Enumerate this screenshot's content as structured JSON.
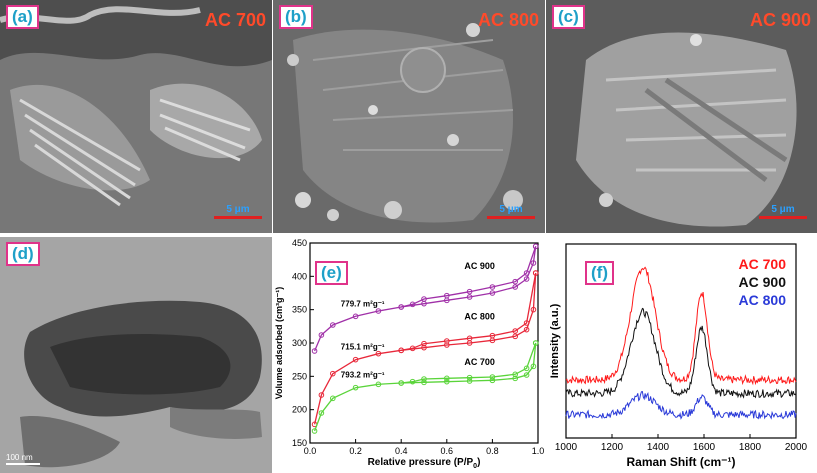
{
  "panels": {
    "a": {
      "label": "(a)",
      "sample": "AC 700",
      "scale": "5 μm"
    },
    "b": {
      "label": "(b)",
      "sample": "AC 800",
      "scale": "5 μm"
    },
    "c": {
      "label": "(c)",
      "sample": "AC 900",
      "scale": "5 μm"
    },
    "d": {
      "label": "(d)",
      "scale": "100 nm"
    },
    "e": {
      "label": "(e)"
    },
    "f": {
      "label": "(f)"
    }
  },
  "chart_data": [
    {
      "type": "line",
      "panel": "(e)",
      "xlabel": "Relative pressure (P/P",
      "xlabel_sub": "0",
      "xlabel_close": ")",
      "ylabel": "Volume adsorbed (cm³g⁻¹)",
      "xlim": [
        0.0,
        1.0
      ],
      "ylim": [
        150,
        450
      ],
      "xticks": [
        "0.0",
        "0.2",
        "0.4",
        "0.6",
        "0.8",
        "1.0"
      ],
      "yticks": [
        "150",
        "200",
        "250",
        "300",
        "350",
        "400",
        "450"
      ],
      "series": [
        {
          "name": "AC 900",
          "area": "779.7 m²g⁻¹",
          "color": "#a030a8",
          "adsorption": [
            [
              0.02,
              288
            ],
            [
              0.05,
              312
            ],
            [
              0.1,
              327
            ],
            [
              0.2,
              340
            ],
            [
              0.3,
              348
            ],
            [
              0.4,
              354
            ],
            [
              0.5,
              359
            ],
            [
              0.6,
              364
            ],
            [
              0.7,
              369
            ],
            [
              0.8,
              375
            ],
            [
              0.9,
              384
            ],
            [
              0.95,
              396
            ],
            [
              0.98,
              420
            ],
            [
              0.99,
              445
            ]
          ],
          "desorption": [
            [
              0.99,
              445
            ],
            [
              0.95,
              405
            ],
            [
              0.9,
              392
            ],
            [
              0.8,
              384
            ],
            [
              0.7,
              377
            ],
            [
              0.6,
              371
            ],
            [
              0.5,
              366
            ],
            [
              0.45,
              358
            ],
            [
              0.4,
              354
            ]
          ]
        },
        {
          "name": "AC 800",
          "area": "715.1 m²g⁻¹",
          "color": "#e8283a",
          "adsorption": [
            [
              0.02,
              178
            ],
            [
              0.05,
              222
            ],
            [
              0.1,
              254
            ],
            [
              0.2,
              275
            ],
            [
              0.3,
              284
            ],
            [
              0.4,
              289
            ],
            [
              0.5,
              293
            ],
            [
              0.6,
              297
            ],
            [
              0.7,
              300
            ],
            [
              0.8,
              304
            ],
            [
              0.9,
              310
            ],
            [
              0.95,
              320
            ],
            [
              0.98,
              350
            ],
            [
              0.99,
              405
            ]
          ],
          "desorption": [
            [
              0.99,
              405
            ],
            [
              0.95,
              330
            ],
            [
              0.9,
              318
            ],
            [
              0.8,
              311
            ],
            [
              0.7,
              307
            ],
            [
              0.6,
              303
            ],
            [
              0.5,
              299
            ],
            [
              0.45,
              292
            ],
            [
              0.4,
              289
            ]
          ]
        },
        {
          "name": "AC 700",
          "area": "793.2 m²g⁻¹",
          "color": "#5ad43a",
          "adsorption": [
            [
              0.02,
              168
            ],
            [
              0.05,
              195
            ],
            [
              0.1,
              217
            ],
            [
              0.2,
              233
            ],
            [
              0.3,
              238
            ],
            [
              0.4,
              240
            ],
            [
              0.5,
              241
            ],
            [
              0.6,
              242
            ],
            [
              0.7,
              243
            ],
            [
              0.8,
              244
            ],
            [
              0.9,
              247
            ],
            [
              0.95,
              252
            ],
            [
              0.98,
              265
            ],
            [
              0.99,
              300
            ]
          ],
          "desorption": [
            [
              0.99,
              300
            ],
            [
              0.95,
              262
            ],
            [
              0.9,
              253
            ],
            [
              0.8,
              249
            ],
            [
              0.7,
              248
            ],
            [
              0.6,
              247
            ],
            [
              0.5,
              246
            ],
            [
              0.45,
              242
            ],
            [
              0.4,
              240
            ]
          ]
        }
      ]
    },
    {
      "type": "line",
      "panel": "(f)",
      "xlabel": "Raman Shift (cm⁻¹)",
      "ylabel": "Intensity (a.u.)",
      "xlim": [
        1000,
        2000
      ],
      "xticks": [
        "1000",
        "1200",
        "1400",
        "1600",
        "1800",
        "2000"
      ],
      "legend_position": "top-right",
      "series": [
        {
          "name": "AC 700",
          "color": "#ff1a1a",
          "baseline": 0.3,
          "d_peak": 0.58,
          "g_peak": 0.45
        },
        {
          "name": "AC 900",
          "color": "#111111",
          "baseline": 0.23,
          "d_peak": 0.42,
          "g_peak": 0.34
        },
        {
          "name": "AC 800",
          "color": "#2a3ad8",
          "baseline": 0.12,
          "d_peak": 0.1,
          "g_peak": 0.09
        }
      ]
    }
  ]
}
